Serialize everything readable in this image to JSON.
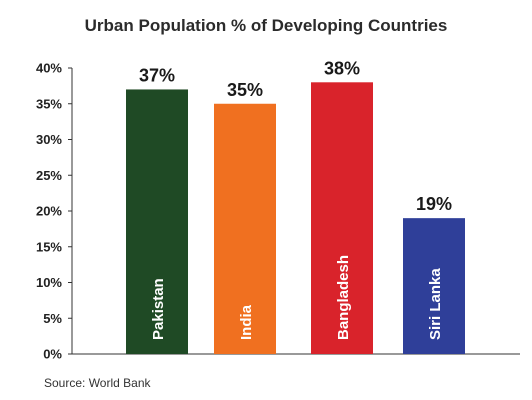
{
  "chart_data": {
    "type": "bar",
    "title": "Urban Population % of Developing Countries",
    "categories": [
      "Pakistan",
      "India",
      "Bangladesh",
      "Siri Lanka"
    ],
    "values": [
      37,
      35,
      38,
      19
    ],
    "value_labels": [
      "37%",
      "35%",
      "38%",
      "19%"
    ],
    "colors": [
      "#1f4a25",
      "#f07020",
      "#d9232b",
      "#2f3f99"
    ],
    "ylim": [
      0,
      40
    ],
    "yticks": [
      0,
      5,
      10,
      15,
      20,
      25,
      30,
      35,
      40
    ],
    "ytick_labels": [
      "0%",
      "5%",
      "10%",
      "15%",
      "20%",
      "25%",
      "30%",
      "35%",
      "40%"
    ],
    "xlabel": "",
    "ylabel": "",
    "grid": false,
    "legend": "none"
  },
  "source": "Source: World Bank"
}
